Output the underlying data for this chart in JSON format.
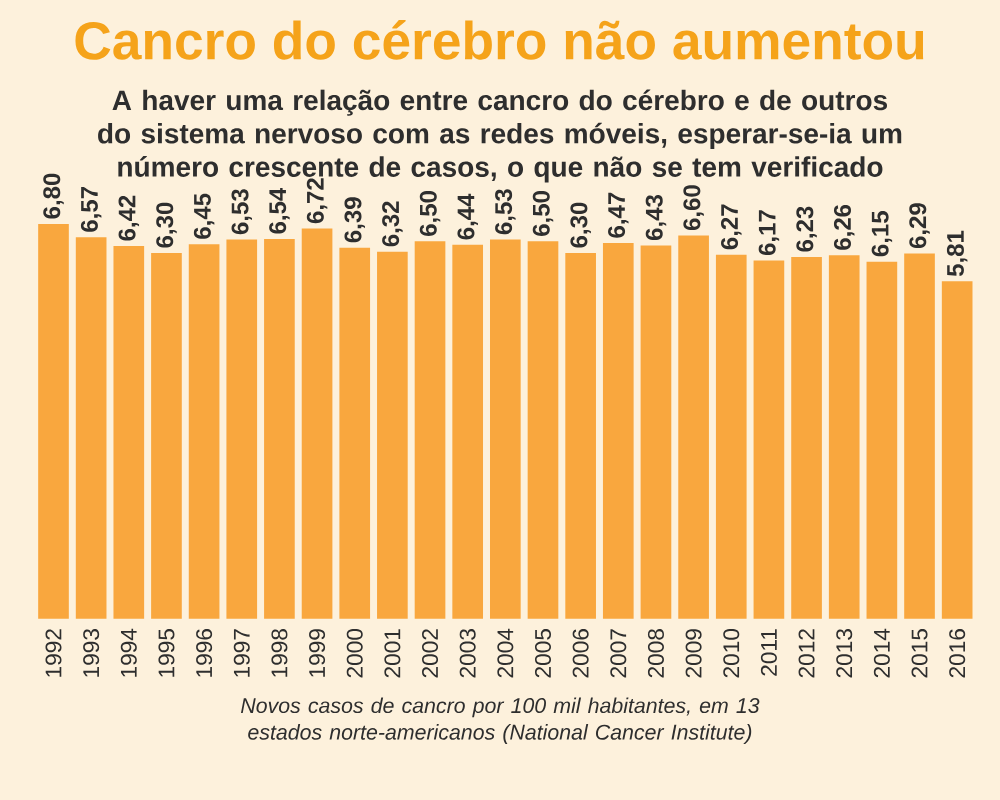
{
  "chart_data": {
    "type": "bar",
    "title": "Cancro do cérebro não aumentou",
    "subtitle": "A haver uma relação entre cancro do cérebro e de outros do sistema nervoso com as redes móveis, esperar-se-ia um número crescente de casos, o que não se tem verificado",
    "categories": [
      "1992",
      "1993",
      "1994",
      "1995",
      "1996",
      "1997",
      "1998",
      "1999",
      "2000",
      "2001",
      "2002",
      "2003",
      "2004",
      "2005",
      "2006",
      "2007",
      "2008",
      "2009",
      "2010",
      "2011",
      "2012",
      "2013",
      "2014",
      "2015",
      "2016"
    ],
    "values": [
      6.8,
      6.57,
      6.42,
      6.3,
      6.45,
      6.53,
      6.54,
      6.72,
      6.39,
      6.32,
      6.5,
      6.44,
      6.53,
      6.5,
      6.3,
      6.47,
      6.43,
      6.6,
      6.27,
      6.17,
      6.23,
      6.26,
      6.15,
      6.29,
      5.81
    ],
    "value_labels": [
      "6,80",
      "6,57",
      "6,42",
      "6,30",
      "6,45",
      "6,53",
      "6,54",
      "6,72",
      "6,39",
      "6,32",
      "6,50",
      "6,44",
      "6,53",
      "6,50",
      "6,30",
      "6,47",
      "6,43",
      "6,60",
      "6,27",
      "6,17",
      "6,23",
      "6,26",
      "6,15",
      "6,29",
      "5,81"
    ],
    "color": "#f9a73e",
    "annotations": [
      "Novos casos de cancro por 100 mil habitantes, em 13 estados norte-americanos (National Cancer Institute)"
    ]
  }
}
